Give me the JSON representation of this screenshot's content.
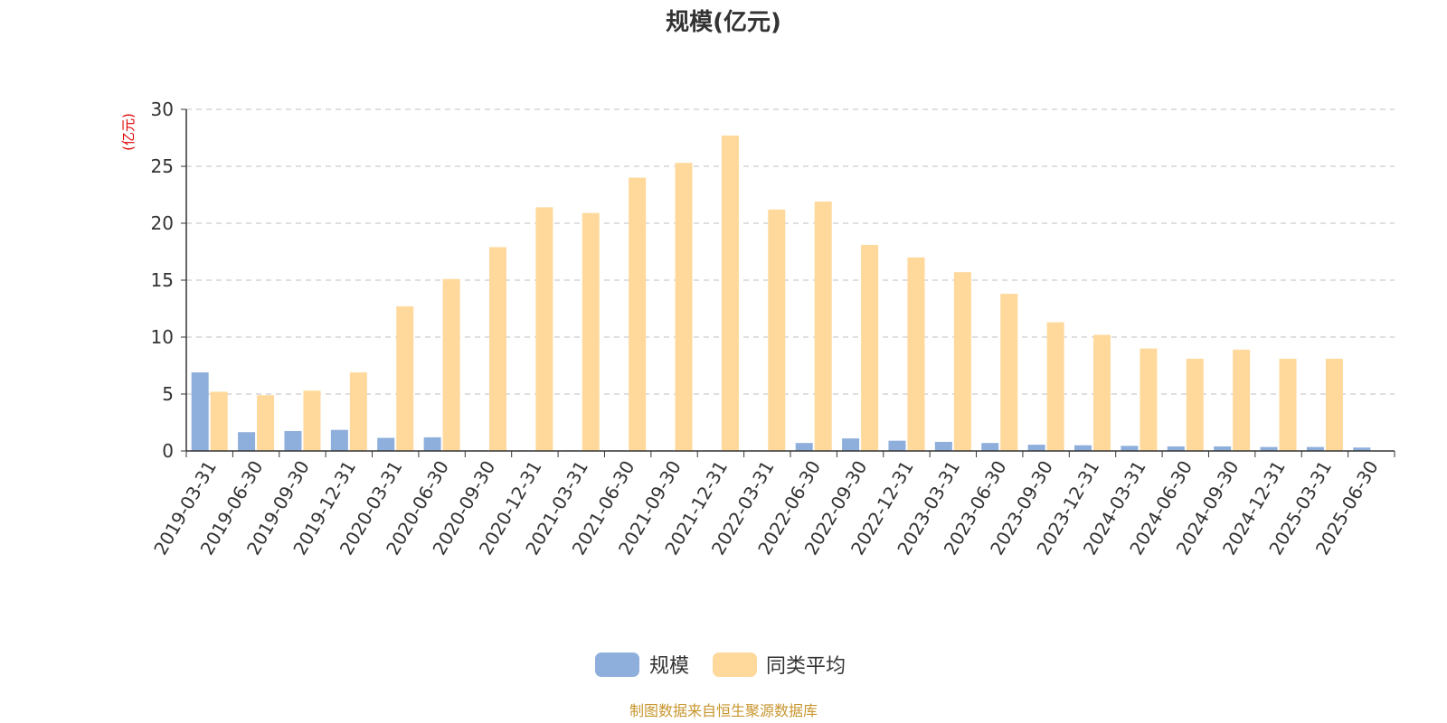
{
  "chart_data": {
    "type": "bar",
    "title": "规模(亿元)",
    "ylabel": "(亿元)",
    "ylim": [
      0,
      30
    ],
    "yticks": [
      0,
      5,
      10,
      15,
      20,
      25,
      30
    ],
    "grid": true,
    "legend_position": "bottom",
    "categories": [
      "2019-03-31",
      "2019-06-30",
      "2019-09-30",
      "2019-12-31",
      "2020-03-31",
      "2020-06-30",
      "2020-09-30",
      "2020-12-31",
      "2021-03-31",
      "2021-06-30",
      "2021-09-30",
      "2021-12-31",
      "2022-03-31",
      "2022-06-30",
      "2022-09-30",
      "2022-12-31",
      "2023-03-31",
      "2023-06-30",
      "2023-09-30",
      "2023-12-31",
      "2024-03-31",
      "2024-06-30",
      "2024-09-30",
      "2024-12-31",
      "2025-03-31",
      "2025-06-30"
    ],
    "series": [
      {
        "name": "规模",
        "color": "#8eaedb",
        "values": [
          6.9,
          1.65,
          1.75,
          1.85,
          1.15,
          1.2,
          0.05,
          0.05,
          0.05,
          0.05,
          0.05,
          0.05,
          0.05,
          0.7,
          1.1,
          0.9,
          0.8,
          0.7,
          0.55,
          0.5,
          0.45,
          0.4,
          0.4,
          0.35,
          0.35,
          0.3
        ]
      },
      {
        "name": "同类平均",
        "color": "#ffd99b",
        "values": [
          5.2,
          4.9,
          5.3,
          6.9,
          12.7,
          15.1,
          17.9,
          21.4,
          20.9,
          24.0,
          25.3,
          27.7,
          21.2,
          21.9,
          18.1,
          17.0,
          15.7,
          13.8,
          11.3,
          10.2,
          9.0,
          8.1,
          8.9,
          8.1,
          8.1,
          null
        ]
      }
    ]
  },
  "source": "制图数据来自恒生聚源数据库"
}
